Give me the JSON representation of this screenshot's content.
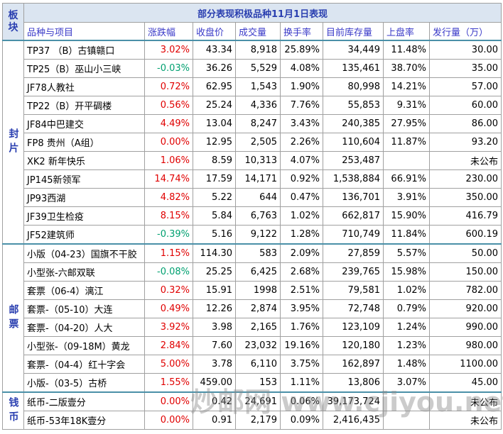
{
  "corner": "板块",
  "title": "部分表现积极品种11月1日表现",
  "header": [
    "品种与项目",
    "涨跌幅",
    "收盘价",
    "成交量",
    "换手率",
    "目前库存量",
    "上盘率",
    "发行量（万）"
  ],
  "groups": [
    {
      "label": "封片",
      "rows": [
        [
          "TP37 （B）古镇赣口",
          "3.02%",
          "43.34",
          "8,918",
          "25.89%",
          "34,449",
          "11.48%",
          "30.00"
        ],
        [
          "TP25（B）巫山小三峡",
          "-0.03%",
          "36.26",
          "5,529",
          "4.08%",
          "135,461",
          "38.70%",
          "35.00"
        ],
        [
          "JF78人教社",
          "0.72%",
          "62.95",
          "1,543",
          "1.90%",
          "80,998",
          "14.21%",
          "57.00"
        ],
        [
          "TP22（B）开平碉楼",
          "0.56%",
          "25.24",
          "4,336",
          "7.76%",
          "55,853",
          "9.31%",
          "60.00"
        ],
        [
          "JF84中巴建交",
          "4.49%",
          "13.04",
          "8,247",
          "3.43%",
          "240,385",
          "27.95%",
          "86.00"
        ],
        [
          "FP8 贵州（A组）",
          "0.00%",
          "12.95",
          "2,505",
          "2.26%",
          "110,604",
          "11.87%",
          "93.20"
        ],
        [
          "XK2 新年快乐",
          "1.06%",
          "8.59",
          "10,313",
          "4.07%",
          "253,487",
          null,
          "未公布"
        ],
        [
          "JP145新领军",
          "14.74%",
          "17.59",
          "14,171",
          "0.92%",
          "1,538,884",
          "66.91%",
          "230.00"
        ],
        [
          "JP93西湖",
          "4.82%",
          "5.22",
          "644",
          "0.47%",
          "136,701",
          "3.91%",
          "350.00"
        ],
        [
          "JF39卫生检疫",
          "8.15%",
          "5.84",
          "6,763",
          "1.02%",
          "662,817",
          "15.90%",
          "416.79"
        ],
        [
          "JF52建筑师",
          "-0.39%",
          "5.16",
          "9,122",
          "1.28%",
          "710,749",
          "11.84%",
          "600.19"
        ]
      ]
    },
    {
      "label": "邮票",
      "rows": [
        [
          "小版（04-23）国旗不干胶",
          "1.15%",
          "114.30",
          "583",
          "2.09%",
          "27,859",
          "5.57%",
          "50.00"
        ],
        [
          "小型张-六邮双联",
          "-0.08%",
          "25.25",
          "6,425",
          "2.68%",
          "239,765",
          "15.98%",
          "150.00"
        ],
        [
          "套票（06-4）漓江",
          "0.32%",
          "15.91",
          "1998",
          "2.51%",
          "79,581",
          "1.02%",
          "782.00"
        ],
        [
          "套票-（05-10）大连",
          "0.49%",
          "12.26",
          "2,874",
          "3.95%",
          "72,748",
          "0.79%",
          "920.00"
        ],
        [
          "套票-（04-20）人大",
          "3.92%",
          "3.98",
          "2,165",
          "1.76%",
          "123,109",
          "1.24%",
          "990.00"
        ],
        [
          "小型张-（09-18M）黄龙",
          "2.84%",
          "7.60",
          "23,032",
          "19.16%",
          "120,180",
          "1.23%",
          "980.00"
        ],
        [
          "套票-（04-4）红十字会",
          "5.00%",
          "3.78",
          "6,110",
          "3.75%",
          "162,897",
          "1.48%",
          "1100.00"
        ],
        [
          "小版-（03-5）古桥",
          "1.55%",
          "459.00",
          "153",
          "1.11%",
          "13,806",
          "3.07%",
          "45.00"
        ]
      ]
    },
    {
      "label": "钱币",
      "rows": [
        [
          "纸币-二版壹分",
          "0.00%",
          "0.42",
          "24,691",
          "0.06%",
          "39,173,724",
          null,
          "未公布"
        ],
        [
          "纸币-53年18K壹分",
          "0.00%",
          "0.91",
          "2,179",
          "0.09%",
          "2,416,435",
          null,
          "未公布"
        ]
      ]
    }
  ],
  "watermark": "炒邮网 www.cjiyou.net"
}
